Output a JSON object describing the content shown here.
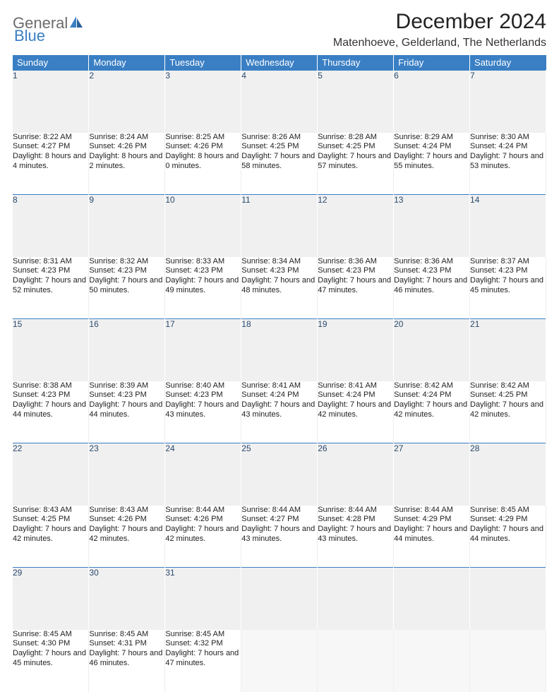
{
  "brand": {
    "part1": "General",
    "part2": "Blue"
  },
  "header": {
    "title": "December 2024",
    "location": "Matenhoeve, Gelderland, The Netherlands"
  },
  "colors": {
    "header_bg": "#3a7fc4",
    "header_text": "#ffffff",
    "daynum_bg": "#f0f0f0",
    "text": "#222222"
  },
  "weekdays": [
    "Sunday",
    "Monday",
    "Tuesday",
    "Wednesday",
    "Thursday",
    "Friday",
    "Saturday"
  ],
  "weeks": [
    [
      {
        "n": "1",
        "sr": "Sunrise: 8:22 AM",
        "ss": "Sunset: 4:27 PM",
        "dl": "Daylight: 8 hours and 4 minutes."
      },
      {
        "n": "2",
        "sr": "Sunrise: 8:24 AM",
        "ss": "Sunset: 4:26 PM",
        "dl": "Daylight: 8 hours and 2 minutes."
      },
      {
        "n": "3",
        "sr": "Sunrise: 8:25 AM",
        "ss": "Sunset: 4:26 PM",
        "dl": "Daylight: 8 hours and 0 minutes."
      },
      {
        "n": "4",
        "sr": "Sunrise: 8:26 AM",
        "ss": "Sunset: 4:25 PM",
        "dl": "Daylight: 7 hours and 58 minutes."
      },
      {
        "n": "5",
        "sr": "Sunrise: 8:28 AM",
        "ss": "Sunset: 4:25 PM",
        "dl": "Daylight: 7 hours and 57 minutes."
      },
      {
        "n": "6",
        "sr": "Sunrise: 8:29 AM",
        "ss": "Sunset: 4:24 PM",
        "dl": "Daylight: 7 hours and 55 minutes."
      },
      {
        "n": "7",
        "sr": "Sunrise: 8:30 AM",
        "ss": "Sunset: 4:24 PM",
        "dl": "Daylight: 7 hours and 53 minutes."
      }
    ],
    [
      {
        "n": "8",
        "sr": "Sunrise: 8:31 AM",
        "ss": "Sunset: 4:23 PM",
        "dl": "Daylight: 7 hours and 52 minutes."
      },
      {
        "n": "9",
        "sr": "Sunrise: 8:32 AM",
        "ss": "Sunset: 4:23 PM",
        "dl": "Daylight: 7 hours and 50 minutes."
      },
      {
        "n": "10",
        "sr": "Sunrise: 8:33 AM",
        "ss": "Sunset: 4:23 PM",
        "dl": "Daylight: 7 hours and 49 minutes."
      },
      {
        "n": "11",
        "sr": "Sunrise: 8:34 AM",
        "ss": "Sunset: 4:23 PM",
        "dl": "Daylight: 7 hours and 48 minutes."
      },
      {
        "n": "12",
        "sr": "Sunrise: 8:36 AM",
        "ss": "Sunset: 4:23 PM",
        "dl": "Daylight: 7 hours and 47 minutes."
      },
      {
        "n": "13",
        "sr": "Sunrise: 8:36 AM",
        "ss": "Sunset: 4:23 PM",
        "dl": "Daylight: 7 hours and 46 minutes."
      },
      {
        "n": "14",
        "sr": "Sunrise: 8:37 AM",
        "ss": "Sunset: 4:23 PM",
        "dl": "Daylight: 7 hours and 45 minutes."
      }
    ],
    [
      {
        "n": "15",
        "sr": "Sunrise: 8:38 AM",
        "ss": "Sunset: 4:23 PM",
        "dl": "Daylight: 7 hours and 44 minutes."
      },
      {
        "n": "16",
        "sr": "Sunrise: 8:39 AM",
        "ss": "Sunset: 4:23 PM",
        "dl": "Daylight: 7 hours and 44 minutes."
      },
      {
        "n": "17",
        "sr": "Sunrise: 8:40 AM",
        "ss": "Sunset: 4:23 PM",
        "dl": "Daylight: 7 hours and 43 minutes."
      },
      {
        "n": "18",
        "sr": "Sunrise: 8:41 AM",
        "ss": "Sunset: 4:24 PM",
        "dl": "Daylight: 7 hours and 43 minutes."
      },
      {
        "n": "19",
        "sr": "Sunrise: 8:41 AM",
        "ss": "Sunset: 4:24 PM",
        "dl": "Daylight: 7 hours and 42 minutes."
      },
      {
        "n": "20",
        "sr": "Sunrise: 8:42 AM",
        "ss": "Sunset: 4:24 PM",
        "dl": "Daylight: 7 hours and 42 minutes."
      },
      {
        "n": "21",
        "sr": "Sunrise: 8:42 AM",
        "ss": "Sunset: 4:25 PM",
        "dl": "Daylight: 7 hours and 42 minutes."
      }
    ],
    [
      {
        "n": "22",
        "sr": "Sunrise: 8:43 AM",
        "ss": "Sunset: 4:25 PM",
        "dl": "Daylight: 7 hours and 42 minutes."
      },
      {
        "n": "23",
        "sr": "Sunrise: 8:43 AM",
        "ss": "Sunset: 4:26 PM",
        "dl": "Daylight: 7 hours and 42 minutes."
      },
      {
        "n": "24",
        "sr": "Sunrise: 8:44 AM",
        "ss": "Sunset: 4:26 PM",
        "dl": "Daylight: 7 hours and 42 minutes."
      },
      {
        "n": "25",
        "sr": "Sunrise: 8:44 AM",
        "ss": "Sunset: 4:27 PM",
        "dl": "Daylight: 7 hours and 43 minutes."
      },
      {
        "n": "26",
        "sr": "Sunrise: 8:44 AM",
        "ss": "Sunset: 4:28 PM",
        "dl": "Daylight: 7 hours and 43 minutes."
      },
      {
        "n": "27",
        "sr": "Sunrise: 8:44 AM",
        "ss": "Sunset: 4:29 PM",
        "dl": "Daylight: 7 hours and 44 minutes."
      },
      {
        "n": "28",
        "sr": "Sunrise: 8:45 AM",
        "ss": "Sunset: 4:29 PM",
        "dl": "Daylight: 7 hours and 44 minutes."
      }
    ],
    [
      {
        "n": "29",
        "sr": "Sunrise: 8:45 AM",
        "ss": "Sunset: 4:30 PM",
        "dl": "Daylight: 7 hours and 45 minutes."
      },
      {
        "n": "30",
        "sr": "Sunrise: 8:45 AM",
        "ss": "Sunset: 4:31 PM",
        "dl": "Daylight: 7 hours and 46 minutes."
      },
      {
        "n": "31",
        "sr": "Sunrise: 8:45 AM",
        "ss": "Sunset: 4:32 PM",
        "dl": "Daylight: 7 hours and 47 minutes."
      },
      {
        "empty": true
      },
      {
        "empty": true
      },
      {
        "empty": true
      },
      {
        "empty": true
      }
    ]
  ]
}
